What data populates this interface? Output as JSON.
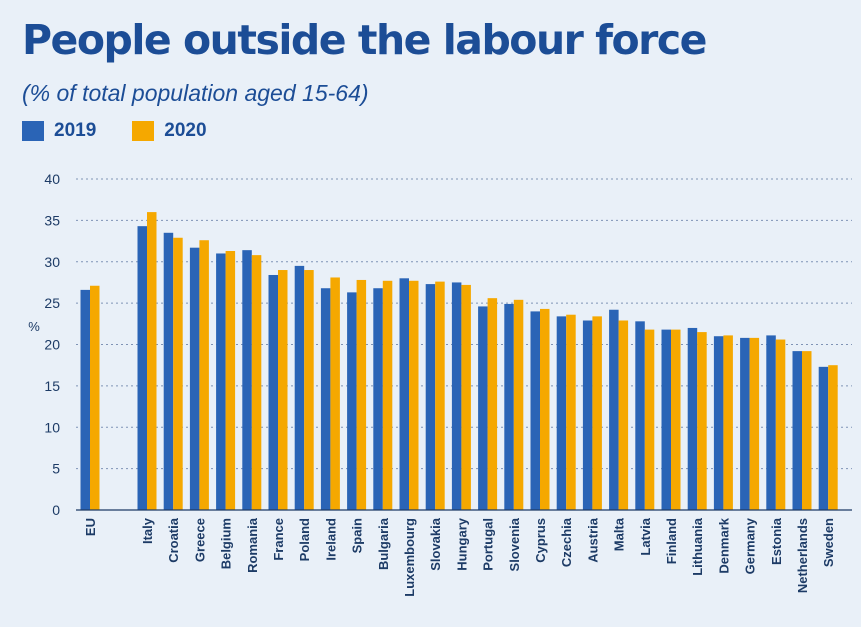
{
  "colors": {
    "series_2019": "#2a64b6",
    "series_2020": "#f5a800",
    "text": "#1c4d96",
    "axis": "#1d3b66",
    "grid": "#7f93b5"
  },
  "chart_data": {
    "type": "bar",
    "title": "People outside the labour force",
    "subtitle": "(% of total population aged 15-64)",
    "ylabel": "%",
    "xlabel": "",
    "ylim": [
      0,
      40
    ],
    "yticks": [
      0,
      5,
      10,
      15,
      20,
      25,
      30,
      35,
      40
    ],
    "grid": true,
    "legend_position": "top-left",
    "categories": [
      "EU",
      "Italy",
      "Croatia",
      "Greece",
      "Belgium",
      "Romania",
      "France",
      "Poland",
      "Ireland",
      "Spain",
      "Bulgaria",
      "Luxembourg",
      "Slovakia",
      "Hungary",
      "Portugal",
      "Slovenia",
      "Cyprus",
      "Czechia",
      "Austria",
      "Malta",
      "Latvia",
      "Finland",
      "Lithuania",
      "Denmark",
      "Germany",
      "Estonia",
      "Netherlands",
      "Sweden"
    ],
    "series": [
      {
        "name": "2019",
        "values": [
          26.6,
          34.3,
          33.5,
          31.7,
          31.0,
          31.4,
          28.4,
          29.5,
          26.8,
          26.3,
          26.8,
          28.0,
          27.3,
          27.5,
          24.6,
          24.9,
          24.0,
          23.4,
          22.9,
          24.2,
          22.8,
          21.8,
          22.0,
          21.0,
          20.8,
          21.1,
          19.2,
          17.3
        ]
      },
      {
        "name": "2020",
        "values": [
          27.1,
          36.0,
          32.9,
          32.6,
          31.3,
          30.8,
          29.0,
          29.0,
          28.1,
          27.8,
          27.7,
          27.7,
          27.6,
          27.2,
          25.6,
          25.4,
          24.3,
          23.6,
          23.4,
          22.9,
          21.8,
          21.8,
          21.5,
          21.1,
          20.8,
          20.6,
          19.2,
          17.5
        ]
      }
    ]
  }
}
